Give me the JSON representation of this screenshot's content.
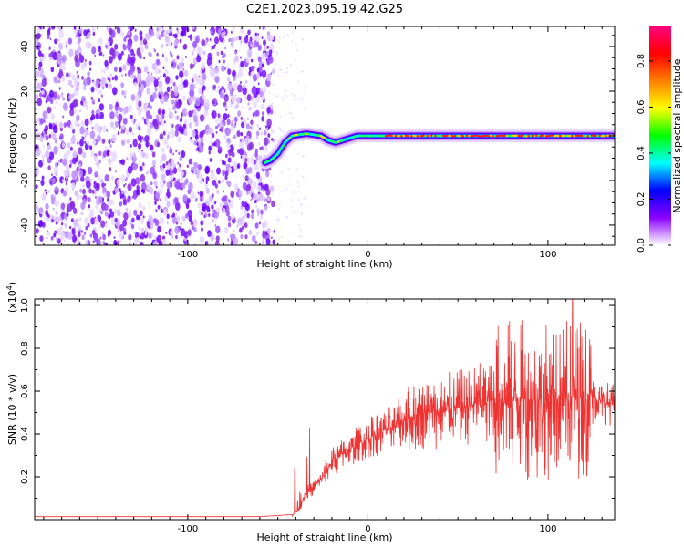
{
  "title": "C2E1.2023.095.19.42.G25",
  "chart_data": [
    {
      "type": "heatmap",
      "xlabel": "Height of straight line (km)",
      "ylabel": "Frequency (Hz)",
      "xlim": [
        -185,
        137
      ],
      "ylim": [
        -49,
        49
      ],
      "xticks": [
        -100,
        0,
        100
      ],
      "yticks": [
        -40,
        -20,
        0,
        20,
        40
      ],
      "noise_region_x": [
        -185,
        -55
      ],
      "signal_trace": {
        "x": [
          -57,
          -54,
          -50,
          -46,
          -42,
          -38,
          -34,
          -30,
          -26,
          -22,
          -18,
          -14,
          -10,
          -6,
          0,
          10,
          20,
          30,
          40,
          50,
          60,
          70,
          80,
          90,
          100,
          110,
          120,
          130,
          137
        ],
        "frequency": [
          -12,
          -11,
          -8,
          -3,
          0,
          0.5,
          1,
          0.5,
          0,
          -2,
          -3,
          -2,
          -1,
          0,
          0,
          0,
          0,
          0,
          0,
          0,
          0,
          0,
          0,
          0,
          0,
          0,
          0,
          0,
          0
        ]
      },
      "colorbar": {
        "label": "Normalized spectral amplitude",
        "range": [
          0.0,
          0.95
        ],
        "ticks": [
          0.0,
          0.2,
          0.4,
          0.6,
          0.8
        ],
        "colormap": [
          "#ffffff",
          "#8b00ff",
          "#0000ff",
          "#00ffff",
          "#00ff00",
          "#ffff00",
          "#ff8000",
          "#ff0000",
          "#ff007f"
        ]
      },
      "grid": false
    },
    {
      "type": "line",
      "xlabel": "Height of straight line (km)",
      "ylabel": "SNR (10 * v/v)",
      "yscale_label": "(x10",
      "yscale_exp": "4",
      "yscale_close": ")",
      "xlim": [
        -185,
        137
      ],
      "ylim": [
        0,
        1.03
      ],
      "xticks": [
        -100,
        0,
        100
      ],
      "yticks": [
        0.2,
        0.4,
        0.6,
        0.8,
        1.0
      ],
      "color": "#ee3333",
      "trend": {
        "x": [
          -185,
          -60,
          -42,
          -38,
          -35,
          -30,
          -25,
          -20,
          -10,
          0,
          10,
          20,
          30,
          40,
          50,
          60,
          70,
          80,
          90,
          100,
          110,
          115,
          120,
          125,
          130,
          137
        ],
        "y": [
          0.01,
          0.01,
          0.02,
          0.05,
          0.12,
          0.15,
          0.2,
          0.27,
          0.33,
          0.38,
          0.42,
          0.46,
          0.5,
          0.5,
          0.52,
          0.54,
          0.56,
          0.57,
          0.56,
          0.55,
          0.56,
          0.57,
          0.6,
          0.57,
          0.55,
          0.54
        ]
      },
      "peak_max": 1.03,
      "grid": false
    }
  ]
}
